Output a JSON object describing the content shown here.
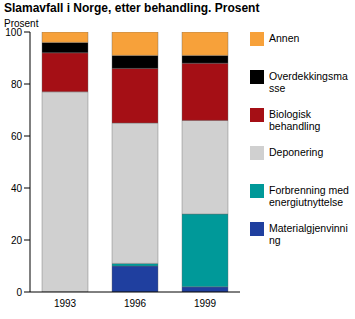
{
  "chart_data": {
    "type": "bar",
    "title": "Slamavfall i Norge, etter behandling. Prosent",
    "y_label": "Prosent",
    "stacked": true,
    "categories": [
      "1993",
      "1996",
      "1999"
    ],
    "ylim": [
      0,
      100
    ],
    "yticks": [
      0,
      20,
      40,
      60,
      80,
      100
    ],
    "grid": false,
    "legend": "right",
    "series": [
      {
        "name": "Materialgjenvinning",
        "color": "#1f3f9f",
        "values": [
          0,
          10,
          2
        ]
      },
      {
        "name": "Forbrenning med energiutnyttelse",
        "color": "#009999",
        "values": [
          0,
          1,
          28
        ]
      },
      {
        "name": "Deponering",
        "color": "#d0d0d0",
        "values": [
          77,
          54,
          36
        ]
      },
      {
        "name": "Biologisk behandling",
        "color": "#a50f15",
        "values": [
          15,
          21,
          22
        ]
      },
      {
        "name": "Overdekkingsmasse",
        "color": "#000000",
        "values": [
          4,
          5,
          3
        ]
      },
      {
        "name": "Annen",
        "color": "#f7a13a",
        "values": [
          4,
          9,
          9
        ]
      }
    ]
  }
}
